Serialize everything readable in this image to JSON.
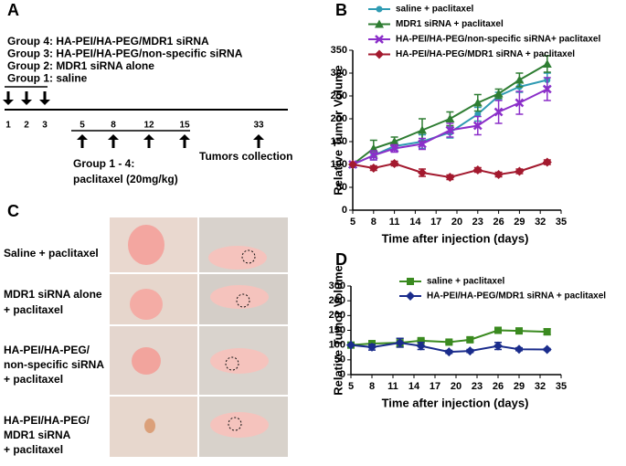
{
  "panel_labels": [
    "A",
    "B",
    "C",
    "D"
  ],
  "schedule": {
    "groups": [
      "Group 4: HA-PEI/HA-PEG/MDR1 siRNA",
      "Group 3: HA-PEI/HA-PEG/non-specific siRNA",
      "Group 2: MDR1 siRNA alone",
      "Group 1: saline"
    ],
    "days": [
      1,
      2,
      3,
      5,
      8,
      12,
      15,
      33
    ],
    "treatment": [
      "Group 1 - 4:",
      "paclitaxel (20mg/kg)"
    ],
    "collection": "Tumors collection"
  },
  "photos": {
    "rows": [
      [
        "Saline + paclitaxel"
      ],
      [
        "MDR1 siRNA alone",
        "+ paclitaxel"
      ],
      [
        "HA-PEI/HA-PEG/",
        "non-specific siRNA",
        "+ paclitaxel"
      ],
      [
        "HA-PEI/HA-PEG/",
        "MDR1 siRNA",
        "+ paclitaxel"
      ]
    ]
  },
  "chart_data": [
    {
      "type": "line",
      "x_label": "Time after injection (days)",
      "y_label": "Relative Tumor Volume",
      "x": [
        5,
        8,
        11,
        15,
        19,
        23,
        26,
        29,
        33
      ],
      "series": [
        {
          "name": "saline + paclitaxel",
          "color": "#2f9bb3",
          "marker": "circle",
          "values": [
            100,
            120,
            140,
            150,
            170,
            210,
            250,
            270,
            285
          ],
          "errors": [
            0,
            10,
            8,
            15,
            12,
            15,
            8,
            12,
            15
          ]
        },
        {
          "name": "MDR1 siRNA + paclitaxel",
          "color": "#2e7d32",
          "marker": "triangle",
          "values": [
            100,
            135,
            150,
            175,
            200,
            235,
            255,
            285,
            320
          ],
          "errors": [
            0,
            18,
            10,
            25,
            15,
            18,
            10,
            15,
            18
          ]
        },
        {
          "name": "HA-PEI/HA-PEG/non-specific siRNA+ paclitaxel",
          "color": "#8b2fc9",
          "marker": "cross",
          "values": [
            100,
            120,
            135,
            145,
            175,
            185,
            215,
            235,
            265
          ],
          "errors": [
            0,
            10,
            8,
            12,
            15,
            20,
            25,
            25,
            25
          ]
        },
        {
          "name": "HA-PEI/HA-PEG/MDR1 siRNA + paclitaxel",
          "color": "#a3192e",
          "marker": "diamond",
          "values": [
            100,
            92,
            102,
            82,
            72,
            88,
            78,
            85,
            105
          ],
          "errors": [
            0,
            5,
            5,
            8,
            5,
            5,
            5,
            5,
            5
          ]
        }
      ],
      "xlim": [
        5,
        35
      ],
      "xticks": [
        5,
        8,
        11,
        14,
        17,
        20,
        23,
        26,
        29,
        32,
        35
      ],
      "ylim": [
        0,
        350
      ],
      "yticks": [
        0,
        50,
        100,
        150,
        200,
        250,
        300,
        350
      ],
      "legend": "top-left"
    },
    {
      "type": "line",
      "x_label": "Time after injection (days)",
      "y_label": "Relative Tumor Volume",
      "x": [
        5,
        8,
        12,
        15,
        19,
        22,
        26,
        29,
        33
      ],
      "series": [
        {
          "name": "saline + paclitaxel",
          "color": "#3a8a1f",
          "marker": "square",
          "values": [
            100,
            105,
            108,
            115,
            110,
            118,
            150,
            148,
            145
          ],
          "errors": [
            0,
            5,
            15,
            5,
            5,
            8,
            5,
            8,
            10
          ]
        },
        {
          "name": "HA-PEI/HA-PEG/MDR1 siRNA + paclitaxel",
          "color": "#1a2c8c",
          "marker": "diamond",
          "values": [
            100,
            93,
            108,
            97,
            77,
            80,
            97,
            86,
            85
          ],
          "errors": [
            0,
            10,
            15,
            12,
            5,
            5,
            12,
            5,
            3
          ]
        }
      ],
      "xlim": [
        5,
        35
      ],
      "xticks": [
        5,
        8,
        11,
        14,
        17,
        20,
        23,
        26,
        29,
        32,
        35
      ],
      "ylim": [
        0,
        300
      ],
      "yticks": [
        0,
        50,
        100,
        150,
        200,
        250,
        300
      ],
      "legend": "top-left"
    }
  ]
}
